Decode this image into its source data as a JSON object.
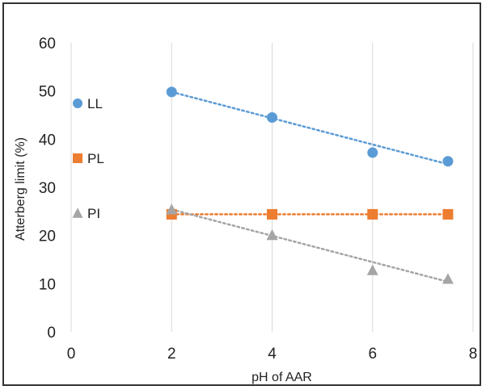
{
  "chart_data": {
    "type": "scatter",
    "title": "",
    "xlabel": "pH of AAR",
    "ylabel": "Atterberg limit (%)",
    "xlim": [
      0,
      8
    ],
    "ylim": [
      0,
      60
    ],
    "xticks": [
      0,
      2,
      4,
      6,
      8
    ],
    "yticks": [
      0,
      10,
      20,
      30,
      40,
      50,
      60
    ],
    "grid": "vertical",
    "legend_position": "left",
    "trendlines": "dotted linear",
    "series": [
      {
        "name": "LL",
        "marker": "circle",
        "color": "#5b9bd5",
        "x": [
          2,
          4,
          6,
          7.5
        ],
        "y": [
          49.8,
          44.5,
          37.2,
          35.4
        ],
        "trend": [
          [
            2,
            49.8
          ],
          [
            7.5,
            34.8
          ]
        ]
      },
      {
        "name": "PL",
        "marker": "square",
        "color": "#ed7d31",
        "x": [
          2,
          4,
          6,
          7.5
        ],
        "y": [
          24.4,
          24.4,
          24.4,
          24.4
        ],
        "trend": [
          [
            2,
            24.4
          ],
          [
            7.5,
            24.4
          ]
        ]
      },
      {
        "name": "PI",
        "marker": "triangle",
        "color": "#a5a5a5",
        "x": [
          2,
          4,
          6,
          7.5
        ],
        "y": [
          25.4,
          20.1,
          12.8,
          11.0
        ],
        "trend": [
          [
            2,
            25.4
          ],
          [
            7.5,
            10.4
          ]
        ]
      }
    ]
  }
}
